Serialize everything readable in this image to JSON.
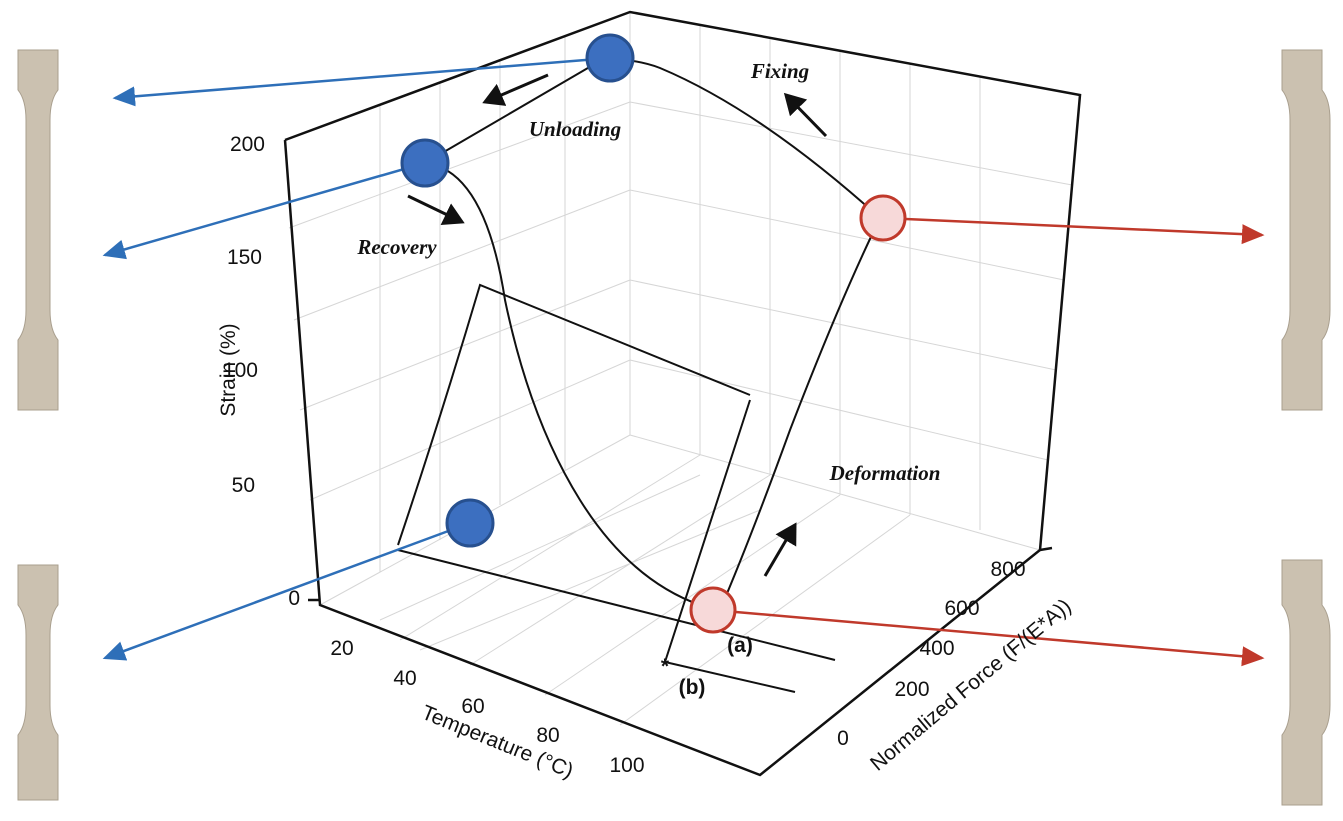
{
  "plot": {
    "strain_axis": {
      "label": "Strain (%)",
      "ticks": [
        0,
        50,
        100,
        150,
        200
      ]
    },
    "temperature_axis": {
      "label": "Temperature (°C)",
      "ticks": [
        20,
        40,
        60,
        80,
        100
      ]
    },
    "force_axis": {
      "label": "Normalized Force (F/(E*A))",
      "ticks": [
        0,
        200,
        400,
        600,
        800
      ]
    },
    "annotations": {
      "unloading": "Unloading",
      "fixing": "Fixing",
      "recovery": "Recovery",
      "deformation": "Deformation",
      "point_a": "(a)",
      "star": "*",
      "point_b": "(b)"
    }
  }
}
